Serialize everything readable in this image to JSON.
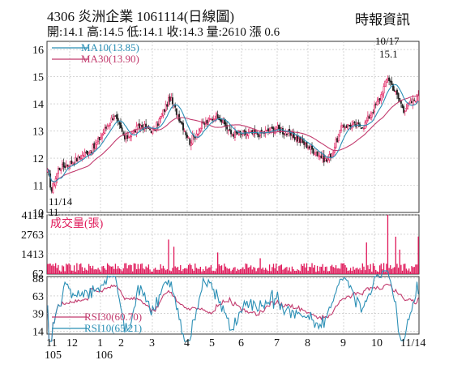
{
  "header": {
    "title_line": "4306  炎洲企業 1061114(日線圖)",
    "quote_line": "開:14.1 高:14.5 低:14.1 收:14.3 量:2610 漲 0.6",
    "source": "時報資訊"
  },
  "colors": {
    "up": "#e0195a",
    "down": "#222222",
    "ma10": "#2b8fb5",
    "ma30": "#c23b6e",
    "volume": "#e0195a",
    "rsi30": "#c23b6e",
    "rsi10": "#2b8fb5",
    "grid": "#bbbbbb"
  },
  "chart_data": [
    {
      "type": "candlestick",
      "panel": "price",
      "ylim": [
        10,
        16.3
      ],
      "y_ticks": [
        "10",
        "11",
        "12",
        "13",
        "14",
        "15",
        "16"
      ],
      "x_ticks": [
        {
          "top": "11",
          "bottom": "105"
        },
        {
          "top": "12",
          "bottom": ""
        },
        {
          "top": "1",
          "bottom": "106"
        },
        {
          "top": "2",
          "bottom": ""
        },
        {
          "top": "3",
          "bottom": ""
        },
        {
          "top": "4",
          "bottom": ""
        },
        {
          "top": "5",
          "bottom": ""
        },
        {
          "top": "6",
          "bottom": ""
        },
        {
          "top": "7",
          "bottom": ""
        },
        {
          "top": "8",
          "bottom": ""
        },
        {
          "top": "9",
          "bottom": ""
        },
        {
          "top": "10",
          "bottom": ""
        },
        {
          "top": "11/14",
          "bottom": ""
        }
      ],
      "legend": [
        {
          "name": "MA10(13.85)",
          "color": "#2b8fb5"
        },
        {
          "name": "MA30(13.90)",
          "color": "#c23b6e"
        }
      ],
      "annotations": [
        {
          "label": "11/14",
          "sub": "11",
          "value": 10.8,
          "kind": "low"
        },
        {
          "label": "10/17",
          "sub": "15.1",
          "value": 15.1,
          "kind": "high"
        }
      ],
      "close_anchors": [
        [
          0,
          11.5
        ],
        [
          3,
          10.8
        ],
        [
          8,
          11.6
        ],
        [
          20,
          11.9
        ],
        [
          35,
          12.4
        ],
        [
          50,
          13.6
        ],
        [
          58,
          12.7
        ],
        [
          70,
          13.2
        ],
        [
          80,
          13.0
        ],
        [
          92,
          14.2
        ],
        [
          98,
          13.6
        ],
        [
          107,
          12.6
        ],
        [
          116,
          13.2
        ],
        [
          128,
          13.6
        ],
        [
          138,
          12.9
        ],
        [
          160,
          12.9
        ],
        [
          172,
          13.1
        ],
        [
          185,
          12.8
        ],
        [
          197,
          12.4
        ],
        [
          210,
          11.9
        ],
        [
          214,
          12.2
        ],
        [
          222,
          13.2
        ],
        [
          238,
          13.2
        ],
        [
          250,
          14.2
        ],
        [
          256,
          15.0
        ],
        [
          262,
          14.4
        ],
        [
          268,
          13.8
        ],
        [
          275,
          14.1
        ],
        [
          279,
          14.3
        ]
      ],
      "ma10_last": 13.85,
      "ma30_last": 13.9,
      "last_bar": {
        "open": 14.1,
        "high": 14.5,
        "low": 14.1,
        "close": 14.3
      }
    },
    {
      "type": "bar",
      "panel": "volume",
      "title": "成交量(張)",
      "ylim": [
        0,
        4114
      ],
      "y_ticks": [
        "4114",
        "2763",
        "1413",
        "62"
      ],
      "spikes": [
        [
          91,
          2400
        ],
        [
          95,
          1900
        ],
        [
          128,
          1500
        ],
        [
          160,
          1100
        ],
        [
          240,
          2200
        ],
        [
          256,
          4114
        ],
        [
          262,
          2600
        ],
        [
          265,
          1700
        ],
        [
          279,
          2610
        ]
      ],
      "base_level": 550
    },
    {
      "type": "line",
      "panel": "rsi",
      "ylim": [
        10,
        90
      ],
      "y_ticks": [
        "88",
        "63",
        "39",
        "14"
      ],
      "series": [
        {
          "name": "RSI30(60.70)",
          "color": "#c23b6e",
          "last": 60.7
        },
        {
          "name": "RSI10(65.21)",
          "color": "#2b8fb5",
          "last": 65.21
        }
      ]
    }
  ]
}
